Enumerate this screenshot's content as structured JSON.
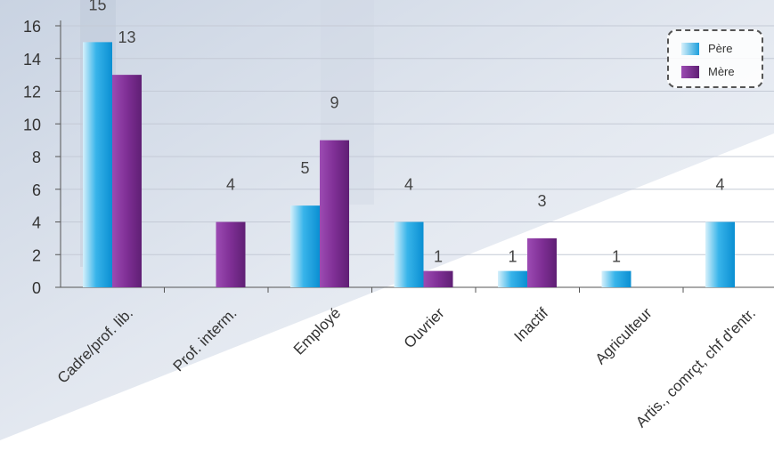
{
  "chart_data": {
    "type": "bar",
    "categories": [
      "Cadre/prof. lib.",
      "Prof. interm.",
      "Employé",
      "Ouvrier",
      "Inactif",
      "Agriculteur",
      "Artis., comrçt, chf d'entr."
    ],
    "series": [
      {
        "name": "Père",
        "values": [
          15,
          null,
          5,
          4,
          1,
          1,
          4
        ],
        "color": "#1d9fdc"
      },
      {
        "name": "Mère",
        "values": [
          13,
          4,
          9,
          1,
          3,
          null,
          null
        ],
        "color": "#7b2d8e"
      }
    ],
    "yticks": [
      "0",
      "2",
      "4",
      "6",
      "8",
      "10",
      "12",
      "14",
      "16"
    ],
    "ylim": [
      0,
      16
    ],
    "title": "",
    "xlabel": "",
    "ylabel": "",
    "grid": true,
    "legend_position": "top-right"
  }
}
